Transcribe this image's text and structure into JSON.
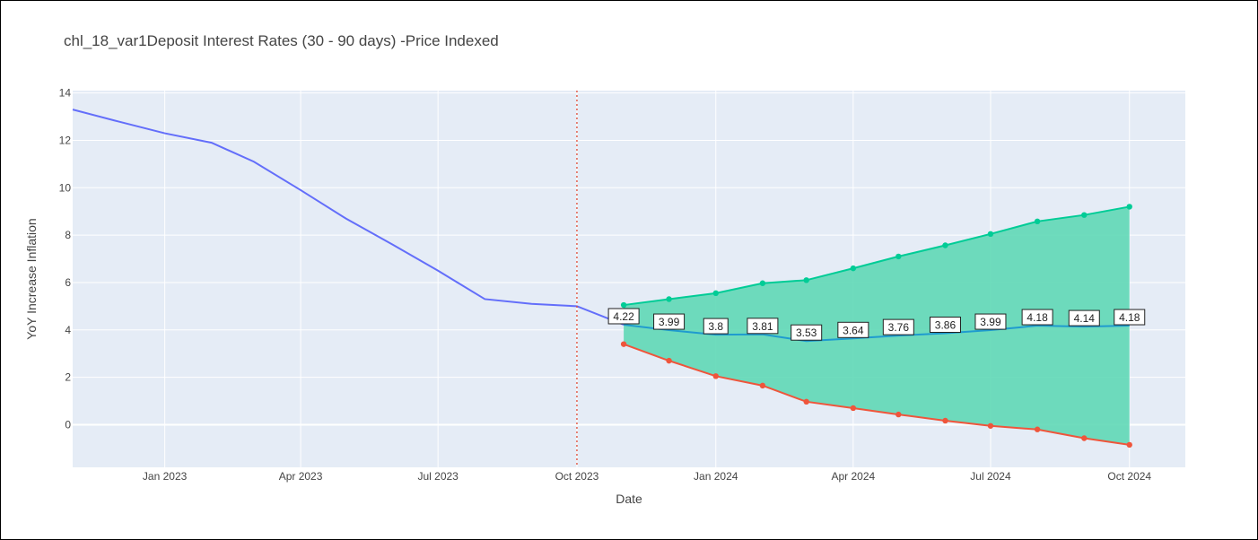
{
  "chart_data": {
    "type": "line",
    "title": "chl_18_var1Deposit Interest Rates (30 - 90 days) -Price Indexed",
    "xlabel": "Date",
    "ylabel": "YoY Increase Inflation",
    "xlim": [
      "2022-11-01",
      "2024-11-07"
    ],
    "ylim": [
      -1.8,
      14.1
    ],
    "x_ticks": [
      {
        "date": "2023-01-01",
        "label": "Jan 2023"
      },
      {
        "date": "2023-04-01",
        "label": "Apr 2023"
      },
      {
        "date": "2023-07-01",
        "label": "Jul 2023"
      },
      {
        "date": "2023-10-01",
        "label": "Oct 2023"
      },
      {
        "date": "2024-01-01",
        "label": "Jan 2024"
      },
      {
        "date": "2024-04-01",
        "label": "Apr 2024"
      },
      {
        "date": "2024-07-01",
        "label": "Jul 2024"
      },
      {
        "date": "2024-10-01",
        "label": "Oct 2024"
      }
    ],
    "y_ticks": [
      0,
      2,
      4,
      6,
      8,
      10,
      12,
      14
    ],
    "grid": true,
    "legend": "none",
    "vline": {
      "date": "2023-10-01",
      "style": "dotted",
      "color": "#e34a33"
    },
    "history": {
      "color": "#636efa",
      "x": [
        "2022-11-01",
        "2022-12-01",
        "2023-01-01",
        "2023-02-01",
        "2023-03-01",
        "2023-04-01",
        "2023-05-01",
        "2023-06-01",
        "2023-07-01",
        "2023-08-01",
        "2023-09-01",
        "2023-10-01",
        "2023-11-01"
      ],
      "y": [
        13.3,
        12.8,
        12.3,
        11.9,
        11.1,
        9.9,
        8.7,
        7.6,
        6.5,
        5.3,
        5.1,
        5.0,
        4.22
      ]
    },
    "forecast": {
      "color": "#1f9bcf",
      "x": [
        "2023-11-01",
        "2023-12-01",
        "2024-01-01",
        "2024-02-01",
        "2024-03-01",
        "2024-04-01",
        "2024-05-01",
        "2024-06-01",
        "2024-07-01",
        "2024-08-01",
        "2024-09-01",
        "2024-10-01"
      ],
      "y": [
        4.22,
        3.99,
        3.8,
        3.81,
        3.53,
        3.64,
        3.76,
        3.86,
        3.99,
        4.18,
        4.14,
        4.18
      ],
      "labels": [
        "4.22",
        "3.99",
        "3.8",
        "3.81",
        "3.53",
        "3.64",
        "3.76",
        "3.86",
        "3.99",
        "4.18",
        "4.14",
        "4.18"
      ]
    },
    "upper": {
      "color": "#00cc96",
      "y": [
        5.05,
        5.3,
        5.55,
        5.97,
        6.1,
        6.6,
        7.1,
        7.57,
        8.05,
        8.58,
        8.85,
        9.2
      ]
    },
    "lower": {
      "color": "#ef553b",
      "y": [
        3.4,
        2.7,
        2.05,
        1.65,
        0.97,
        0.7,
        0.43,
        0.17,
        -0.05,
        -0.2,
        -0.57,
        -0.85
      ]
    },
    "band_color": "#5fd8b6"
  }
}
